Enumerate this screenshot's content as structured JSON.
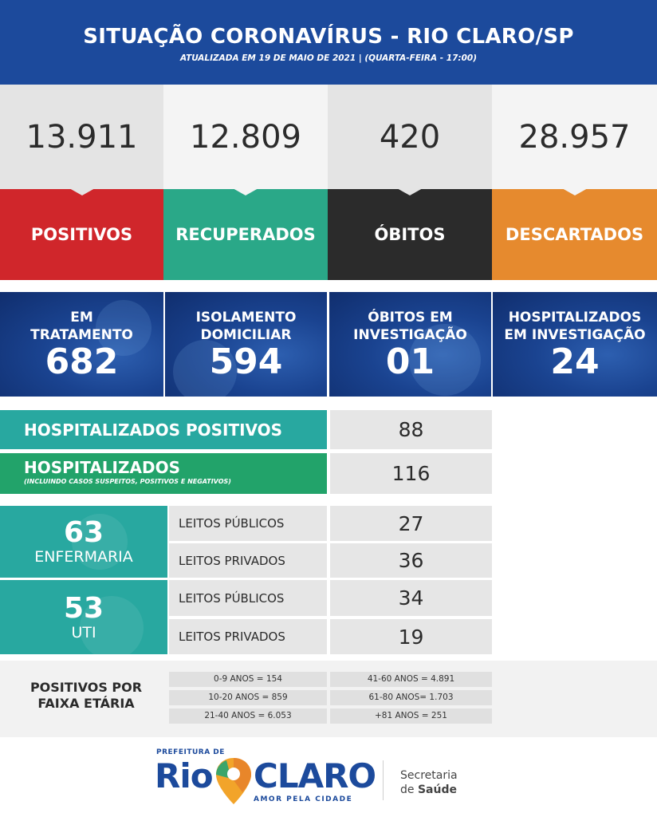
{
  "header": {
    "title": "SITUAÇÃO CORONAVÍRUS - RIO CLARO/SP",
    "subtitle": "ATUALIZADA EM 19 DE MAIO DE 2021 | (QUARTA-FEIRA - 17:00)"
  },
  "totals": [
    {
      "value": "13.911",
      "label": "POSITIVOS",
      "color": "#d0262b"
    },
    {
      "value": "12.809",
      "label": "RECUPERADOS",
      "color": "#2aa888"
    },
    {
      "value": "420",
      "label": "ÓBITOS",
      "color": "#2b2b2b"
    },
    {
      "value": "28.957",
      "label": "DESCARTADOS",
      "color": "#e68a2e"
    }
  ],
  "status": [
    {
      "line1": "EM",
      "line2": "TRATAMENTO",
      "value": "682"
    },
    {
      "line1": "ISOLAMENTO",
      "line2": "DOMICILIAR",
      "value": "594"
    },
    {
      "line1": "ÓBITOS EM",
      "line2": "INVESTIGAÇÃO",
      "value": "01"
    },
    {
      "line1": "HOSPITALIZADOS",
      "line2": "EM INVESTIGAÇÃO",
      "value": "24"
    }
  ],
  "hospital": {
    "positivos_label": "HOSPITALIZADOS POSITIVOS",
    "positivos_value": "88",
    "total_label": "HOSPITALIZADOS",
    "total_note": "(INCLUINDO CASOS SUSPEITOS, POSITIVOS E NEGATIVOS)",
    "total_value": "116"
  },
  "beds": {
    "enfermaria": {
      "value": "63",
      "label": "ENFERMARIA",
      "publicos_label": "LEITOS PÚBLICOS",
      "publicos": "27",
      "privados_label": "LEITOS PRIVADOS",
      "privados": "36"
    },
    "uti": {
      "value": "53",
      "label": "UTI",
      "publicos_label": "LEITOS PÚBLICOS",
      "publicos": "34",
      "privados_label": "LEITOS PRIVADOS",
      "privados": "19"
    }
  },
  "age": {
    "title_line1": "POSITIVOS POR",
    "title_line2": "FAIXA ETÁRIA",
    "left": [
      "0-9 ANOS = 154",
      "10-20 ANOS = 859",
      "21-40 ANOS = 6.053"
    ],
    "right": [
      "41-60 ANOS = 4.891",
      "61-80 ANOS= 1.703",
      "+81 ANOS = 251"
    ]
  },
  "footer": {
    "prefeitura": "PREFEITURA DE",
    "logo_rio": "Rio",
    "logo_claro": "CLARO",
    "slogan": "AMOR PELA CIDADE",
    "secretaria": "Secretaria",
    "saude_prefix": "de",
    "saude": "Saúde"
  }
}
